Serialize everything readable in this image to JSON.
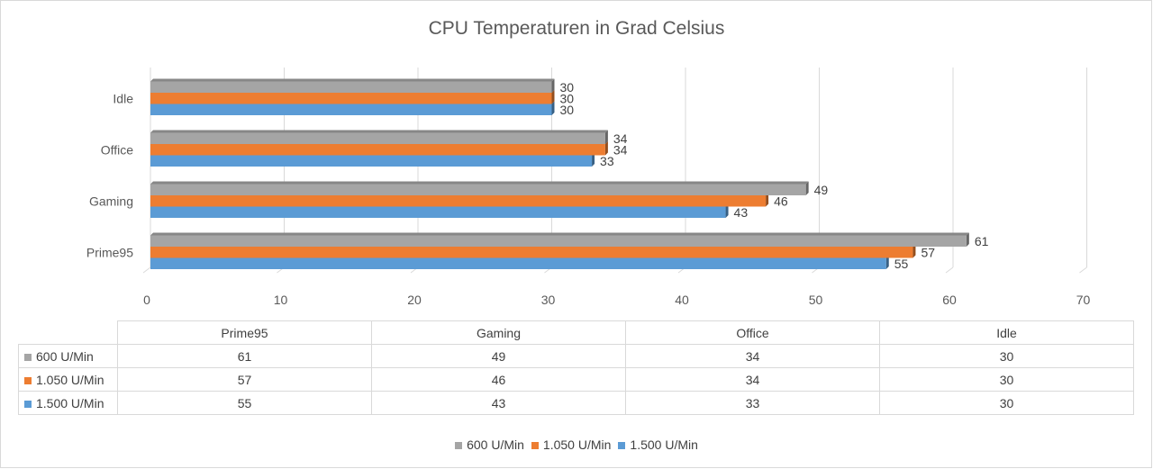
{
  "chart_data": {
    "type": "bar",
    "orientation": "horizontal",
    "title": "CPU Temperaturen in Grad Celsius",
    "xlabel": "",
    "ylabel": "",
    "xlim": [
      0,
      70
    ],
    "x_ticks": [
      "0",
      "10",
      "20",
      "30",
      "40",
      "50",
      "60",
      "70"
    ],
    "categories": [
      "Prime95",
      "Gaming",
      "Office",
      "Idle"
    ],
    "series": [
      {
        "name": "600 U/Min",
        "color": "#a5a5a5",
        "values": [
          61,
          49,
          34,
          30
        ]
      },
      {
        "name": "1.050 U/Min",
        "color": "#ed7d31",
        "values": [
          57,
          46,
          34,
          30
        ]
      },
      {
        "name": "1.500 U/Min",
        "color": "#5b9bd5",
        "values": [
          55,
          43,
          33,
          30
        ]
      }
    ],
    "grid": true,
    "data_labels": true,
    "data_table": true,
    "legend": "bottom"
  }
}
